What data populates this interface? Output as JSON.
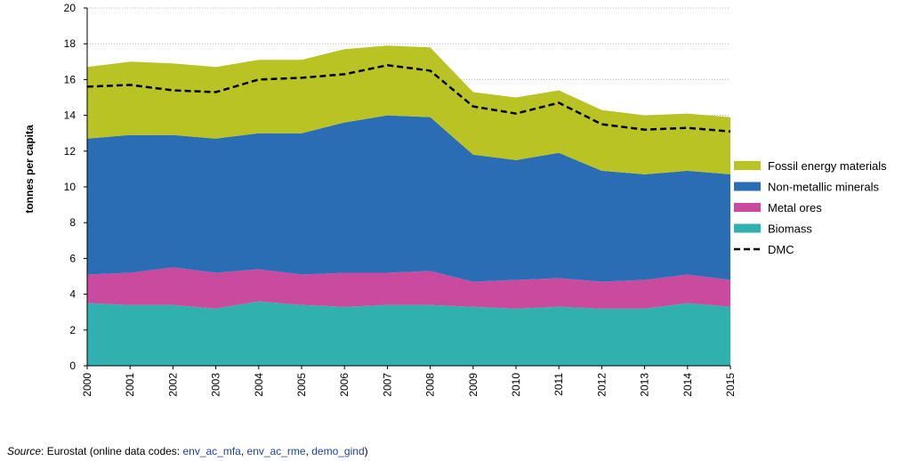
{
  "chart_data": {
    "type": "area",
    "stacked": true,
    "ylabel": "tonnes per capita",
    "ylim": [
      0,
      20
    ],
    "yticks": [
      0,
      2,
      4,
      6,
      8,
      10,
      12,
      14,
      16,
      18,
      20
    ],
    "grid": "horizontal dotted",
    "legend_placement": "right",
    "x": [
      "2000",
      "2001",
      "2002",
      "2003",
      "2004",
      "2005",
      "2006",
      "2007",
      "2008",
      "2009",
      "2010",
      "2011",
      "2012",
      "2013",
      "2014",
      "2015"
    ],
    "series": [
      {
        "name": "Biomass",
        "color": "#31b0b0",
        "values": [
          3.5,
          3.4,
          3.4,
          3.2,
          3.6,
          3.4,
          3.3,
          3.4,
          3.4,
          3.3,
          3.2,
          3.3,
          3.2,
          3.2,
          3.5,
          3.3
        ]
      },
      {
        "name": "Metal ores",
        "color": "#c94a9e",
        "values": [
          1.6,
          1.8,
          2.1,
          2.0,
          1.8,
          1.7,
          1.9,
          1.8,
          1.9,
          1.4,
          1.6,
          1.6,
          1.5,
          1.6,
          1.6,
          1.5
        ]
      },
      {
        "name": "Non-metallic minerals",
        "color": "#2a6db5",
        "values": [
          7.6,
          7.7,
          7.4,
          7.5,
          7.6,
          7.9,
          8.4,
          8.8,
          8.6,
          7.1,
          6.7,
          7.0,
          6.2,
          5.9,
          5.8,
          5.9
        ]
      },
      {
        "name": "Fossil energy materials",
        "color": "#b9c424",
        "values": [
          4.0,
          4.1,
          4.0,
          4.0,
          4.1,
          4.1,
          4.1,
          3.9,
          3.9,
          3.5,
          3.5,
          3.5,
          3.4,
          3.3,
          3.2,
          3.2
        ]
      }
    ],
    "lines": [
      {
        "name": "DMC",
        "color": "#000000",
        "dash": "dashed",
        "values": [
          15.6,
          15.7,
          15.4,
          15.3,
          16.0,
          16.1,
          16.3,
          16.8,
          16.5,
          14.5,
          14.1,
          14.7,
          13.5,
          13.2,
          13.3,
          13.1
        ]
      }
    ],
    "legend_order": [
      "Fossil energy materials",
      "Non-metallic minerals",
      "Metal ores",
      "Biomass",
      "DMC"
    ]
  },
  "source": {
    "label": "Source",
    "prefix": ": Eurostat (online data codes: ",
    "codes": [
      "env_ac_mfa",
      "env_ac_rme",
      "demo_gind"
    ],
    "sep1": ", ",
    "sep2": ", ",
    "suffix": ")"
  }
}
